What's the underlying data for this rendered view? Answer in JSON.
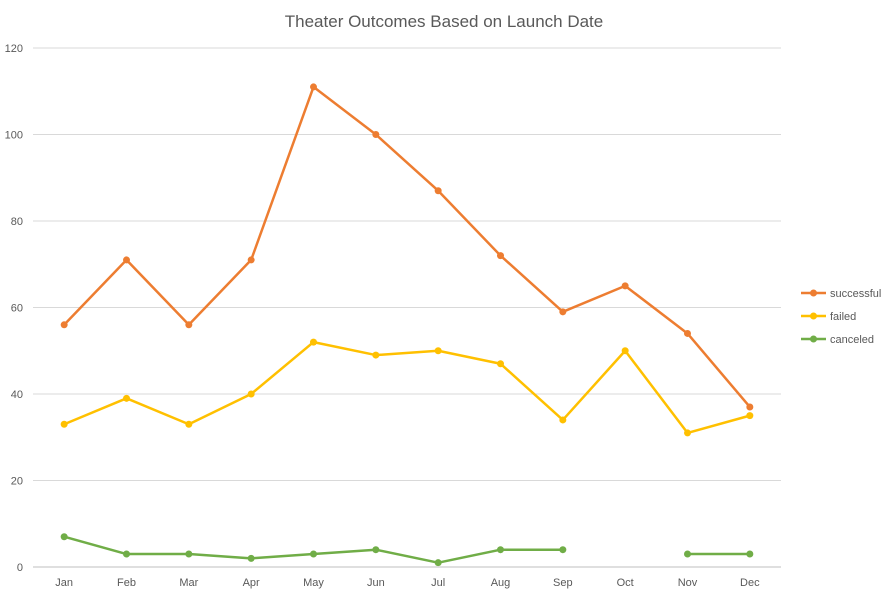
{
  "chart_data": {
    "type": "line",
    "title": "Theater Outcomes Based on Launch Date",
    "xlabel": "",
    "ylabel": "",
    "ylim": [
      0,
      120
    ],
    "yticks": [
      "0",
      "20",
      "40",
      "60",
      "80",
      "100",
      "120"
    ],
    "categories": [
      "Jan",
      "Feb",
      "Mar",
      "Apr",
      "May",
      "Jun",
      "Jul",
      "Aug",
      "Sep",
      "Oct",
      "Nov",
      "Dec"
    ],
    "grid": true,
    "legend_position": "right",
    "series": [
      {
        "name": "successful",
        "color": "#ED7D31",
        "values": [
          56,
          71,
          56,
          71,
          111,
          100,
          87,
          72,
          59,
          65,
          54,
          37
        ]
      },
      {
        "name": "failed",
        "color": "#FFC000",
        "values": [
          33,
          39,
          33,
          40,
          52,
          49,
          50,
          47,
          34,
          50,
          31,
          35
        ]
      },
      {
        "name": "canceled",
        "color": "#70AD47",
        "values": [
          7,
          3,
          3,
          2,
          3,
          4,
          1,
          4,
          4,
          null,
          3,
          3
        ]
      }
    ]
  }
}
